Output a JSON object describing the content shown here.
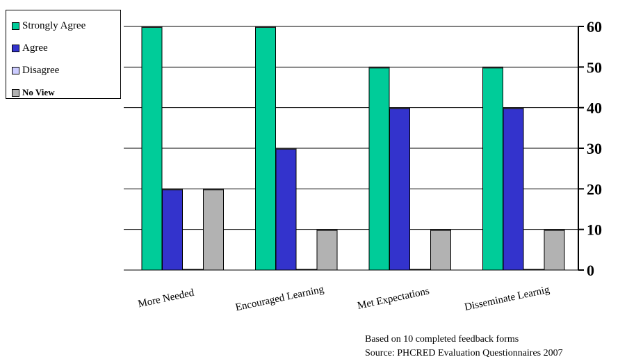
{
  "chart_data": {
    "type": "bar",
    "categories": [
      "More Needed",
      "Encouraged Learning",
      "Met Expectations",
      "Disseminate Learnig"
    ],
    "series": [
      {
        "name": "Strongly Agree",
        "color": "#00CC99",
        "values": [
          60,
          60,
          50,
          50
        ]
      },
      {
        "name": "Agree",
        "color": "#3333CC",
        "values": [
          20,
          30,
          40,
          40
        ]
      },
      {
        "name": "Disagree",
        "color": "#CCCCFF",
        "values": [
          0,
          0,
          0,
          0
        ]
      },
      {
        "name": "No View",
        "color": "#B2B2B2",
        "values": [
          20,
          10,
          10,
          10
        ]
      }
    ],
    "ylim": [
      0,
      60
    ],
    "yticks": [
      0,
      10,
      20,
      30,
      40,
      50,
      60
    ],
    "yaxis_position": "right",
    "grid": true,
    "legend_position": "top-left"
  },
  "notes": {
    "line1": "Based on 10 completed feedback forms",
    "line2": "Source: PHCRED Evaluation Questionnaires 2007"
  }
}
